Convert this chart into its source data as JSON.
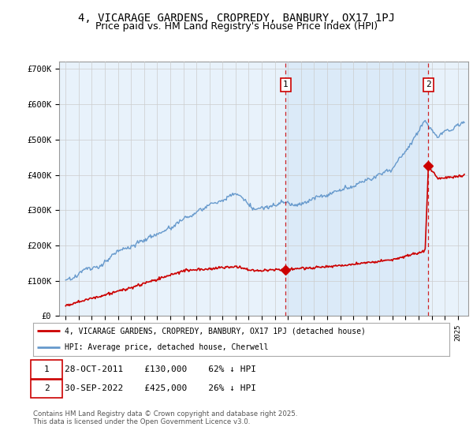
{
  "title": "4, VICARAGE GARDENS, CROPREDY, BANBURY, OX17 1PJ",
  "subtitle": "Price paid vs. HM Land Registry's House Price Index (HPI)",
  "legend_line1": "4, VICARAGE GARDENS, CROPREDY, BANBURY, OX17 1PJ (detached house)",
  "legend_line2": "HPI: Average price, detached house, Cherwell",
  "footer": "Contains HM Land Registry data © Crown copyright and database right 2025.\nThis data is licensed under the Open Government Licence v3.0.",
  "sale1_date": "28-OCT-2011",
  "sale1_price": "£130,000",
  "sale1_hpi": "62% ↓ HPI",
  "sale1_year": 2011.83,
  "sale1_value": 130000,
  "sale2_date": "30-SEP-2022",
  "sale2_price": "£425,000",
  "sale2_hpi": "26% ↓ HPI",
  "sale2_year": 2022.75,
  "sale2_value": 425000,
  "ylim": [
    0,
    720000
  ],
  "xlim": [
    1994.5,
    2025.8
  ],
  "plot_bg": "#e8f2fb",
  "shade_color": "#daeaf8",
  "red_line_color": "#cc0000",
  "blue_line_color": "#6699cc",
  "grid_color": "#cccccc",
  "title_fontsize": 10,
  "subtitle_fontsize": 9
}
